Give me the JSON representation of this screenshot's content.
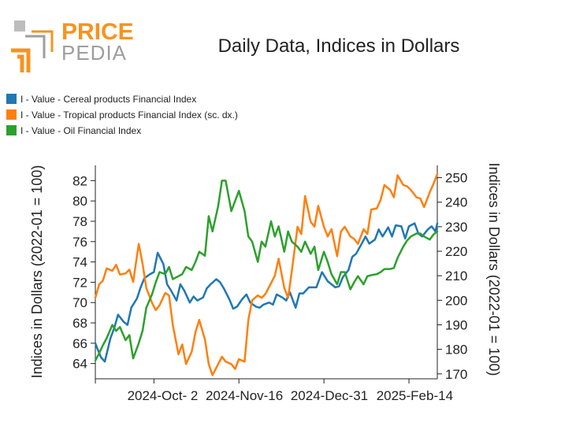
{
  "logo": {
    "word1": "PRICE",
    "word2": "PEDIA",
    "color_orange": "#f7931e",
    "color_gray": "#9e9e9e"
  },
  "chart_data": {
    "type": "line",
    "title": "Daily Data, Indices in Dollars",
    "ylabel_left": "Indices in Dollars (2022-01 = 100)",
    "ylabel_right": "Indices in Dollars (2022-01 = 100)",
    "xlabel": "",
    "x_range": [
      "2024-09-01",
      "2025-03-01"
    ],
    "x_ticks": [
      "2024-Oct- 2",
      "2024-Nov-16",
      "2024-Dec-31",
      "2025-Feb-14"
    ],
    "ylim_left": [
      62.5,
      83.5
    ],
    "ylim_right": [
      168,
      255
    ],
    "yticks_left": [
      64,
      66,
      68,
      70,
      72,
      74,
      76,
      78,
      80,
      82
    ],
    "yticks_right": [
      170,
      180,
      190,
      200,
      210,
      220,
      230,
      240,
      250
    ],
    "series": [
      {
        "name": "I - Value - Cereal products Financial Index",
        "axis": "left",
        "color": "#1f77b4",
        "x": [
          "2024-09-01",
          "2024-09-02",
          "2024-09-04",
          "2024-09-06",
          "2024-09-09",
          "2024-09-11",
          "2024-09-13",
          "2024-09-16",
          "2024-09-18",
          "2024-09-20",
          "2024-09-23",
          "2024-09-25",
          "2024-09-27",
          "2024-09-30",
          "2024-10-02",
          "2024-10-04",
          "2024-10-07",
          "2024-10-09",
          "2024-10-11",
          "2024-10-14",
          "2024-10-16",
          "2024-10-18",
          "2024-10-21",
          "2024-10-23",
          "2024-10-25",
          "2024-10-28",
          "2024-10-30",
          "2024-11-01",
          "2024-11-04",
          "2024-11-06",
          "2024-11-08",
          "2024-11-11",
          "2024-11-13",
          "2024-11-15",
          "2024-11-18",
          "2024-11-20",
          "2024-11-22",
          "2024-11-25",
          "2024-11-27",
          "2024-11-29",
          "2024-12-02",
          "2024-12-04",
          "2024-12-06",
          "2024-12-09",
          "2024-12-11",
          "2024-12-13",
          "2024-12-16",
          "2024-12-18",
          "2024-12-20",
          "2024-12-23",
          "2024-12-27",
          "2024-12-30",
          "2025-01-02",
          "2025-01-06",
          "2025-01-08",
          "2025-01-10",
          "2025-01-13",
          "2025-01-15",
          "2025-01-17",
          "2025-01-20",
          "2025-01-22",
          "2025-01-24",
          "2025-01-27",
          "2025-01-29",
          "2025-01-31",
          "2025-02-03",
          "2025-02-05",
          "2025-02-07",
          "2025-02-10",
          "2025-02-12",
          "2025-02-14",
          "2025-02-17",
          "2025-02-19",
          "2025-02-21",
          "2025-02-24",
          "2025-02-26",
          "2025-02-28",
          "2025-03-01"
        ],
        "values": [
          66.0,
          65.5,
          64.6,
          64.2,
          66.5,
          67.5,
          68.8,
          68.1,
          67.8,
          69.5,
          70.4,
          71.5,
          72.4,
          72.8,
          73.0,
          74.9,
          73.8,
          71.8,
          71.2,
          70.2,
          71.8,
          71.2,
          70.0,
          70.6,
          70.2,
          70.5,
          71.4,
          71.8,
          72.3,
          72.0,
          71.4,
          70.3,
          69.4,
          69.6,
          70.4,
          70.8,
          70.0,
          69.6,
          69.5,
          69.8,
          70.0,
          69.8,
          70.8,
          70.5,
          70.2,
          71.0,
          69.5,
          70.9,
          70.9,
          71.5,
          71.5,
          73.0,
          72.1,
          71.5,
          71.6,
          72.5,
          73.2,
          74.5,
          74.8,
          75.8,
          76.5,
          75.8,
          76.2,
          77.2,
          76.5,
          77.4,
          76.5,
          77.6,
          77.5,
          76.3,
          77.5,
          77.8,
          76.8,
          76.5,
          77.2,
          77.5,
          77.0,
          77.8
        ]
      },
      {
        "name": "I - Value - Tropical products Financial Index (sc. dx.)",
        "axis": "right",
        "color": "#ff7f0e",
        "x": [
          "2024-09-01",
          "2024-09-03",
          "2024-09-05",
          "2024-09-07",
          "2024-09-10",
          "2024-09-12",
          "2024-09-14",
          "2024-09-17",
          "2024-09-19",
          "2024-09-21",
          "2024-09-24",
          "2024-09-26",
          "2024-09-28",
          "2024-10-01",
          "2024-10-03",
          "2024-10-05",
          "2024-10-08",
          "2024-10-10",
          "2024-10-12",
          "2024-10-15",
          "2024-10-17",
          "2024-10-19",
          "2024-10-22",
          "2024-10-24",
          "2024-10-26",
          "2024-10-29",
          "2024-10-31",
          "2024-11-02",
          "2024-11-05",
          "2024-11-07",
          "2024-11-09",
          "2024-11-12",
          "2024-11-14",
          "2024-11-16",
          "2024-11-19",
          "2024-11-21",
          "2024-11-23",
          "2024-11-26",
          "2024-11-28",
          "2024-11-30",
          "2024-12-03",
          "2024-12-05",
          "2024-12-07",
          "2024-12-10",
          "2024-12-12",
          "2024-12-14",
          "2024-12-17",
          "2024-12-19",
          "2024-12-21",
          "2024-12-24",
          "2024-12-26",
          "2024-12-28",
          "2024-12-31",
          "2025-01-02",
          "2025-01-04",
          "2025-01-07",
          "2025-01-09",
          "2025-01-11",
          "2025-01-14",
          "2025-01-16",
          "2025-01-18",
          "2025-01-21",
          "2025-01-23",
          "2025-01-25",
          "2025-01-28",
          "2025-01-30",
          "2025-02-01",
          "2025-02-04",
          "2025-02-06",
          "2025-02-08",
          "2025-02-11",
          "2025-02-13",
          "2025-02-15",
          "2025-02-18",
          "2025-02-20",
          "2025-02-22",
          "2025-02-25",
          "2025-02-27",
          "2025-03-01"
        ],
        "values": [
          201.0,
          206.5,
          208.0,
          213.0,
          212.0,
          214.5,
          210.5,
          211.0,
          212.5,
          207.5,
          223.0,
          215.0,
          205.0,
          199.0,
          196.0,
          198.0,
          203.0,
          202.0,
          190.0,
          178.0,
          182.0,
          174.0,
          179.0,
          187.0,
          192.0,
          184.0,
          174.0,
          169.5,
          174.0,
          177.0,
          175.0,
          174.0,
          172.0,
          176.0,
          175.0,
          192.0,
          200.0,
          202.0,
          201.0,
          202.5,
          207.0,
          210.0,
          217.0,
          205.0,
          201.0,
          212.0,
          230.0,
          227.0,
          242.5,
          232.0,
          230.0,
          238.5,
          230.0,
          226.0,
          229.0,
          218.0,
          228.0,
          230.0,
          226.0,
          225.0,
          223.0,
          229.0,
          227.0,
          237.0,
          237.5,
          241.0,
          247.0,
          245.0,
          242.0,
          251.0,
          247.0,
          246.5,
          245.0,
          242.0,
          241.5,
          238.0,
          244.0,
          247.5,
          251.5
        ]
      },
      {
        "name": "I - Value - Oil Financial Index",
        "axis": "left",
        "color": "#2ca02c",
        "x": [
          "2024-09-01",
          "2024-09-03",
          "2024-09-05",
          "2024-09-07",
          "2024-09-10",
          "2024-09-12",
          "2024-09-14",
          "2024-09-17",
          "2024-09-19",
          "2024-09-21",
          "2024-09-24",
          "2024-09-26",
          "2024-09-28",
          "2024-10-01",
          "2024-10-03",
          "2024-10-05",
          "2024-10-08",
          "2024-10-10",
          "2024-10-12",
          "2024-10-15",
          "2024-10-17",
          "2024-10-19",
          "2024-10-22",
          "2024-10-24",
          "2024-10-26",
          "2024-10-29",
          "2024-10-31",
          "2024-11-02",
          "2024-11-05",
          "2024-11-07",
          "2024-11-09",
          "2024-11-12",
          "2024-11-14",
          "2024-11-16",
          "2024-11-19",
          "2024-11-21",
          "2024-11-23",
          "2024-11-26",
          "2024-11-28",
          "2024-11-30",
          "2024-12-03",
          "2024-12-05",
          "2024-12-07",
          "2024-12-10",
          "2024-12-12",
          "2024-12-14",
          "2024-12-17",
          "2024-12-19",
          "2024-12-21",
          "2024-12-24",
          "2024-12-26",
          "2024-12-28",
          "2024-12-31",
          "2025-01-02",
          "2025-01-04",
          "2025-01-07",
          "2025-01-09",
          "2025-01-11",
          "2025-01-14",
          "2025-01-16",
          "2025-01-18",
          "2025-01-21",
          "2025-01-23",
          "2025-01-25",
          "2025-01-28",
          "2025-01-30",
          "2025-02-01",
          "2025-02-04",
          "2025-02-06",
          "2025-02-08",
          "2025-02-11",
          "2025-02-13",
          "2025-02-15",
          "2025-02-18",
          "2025-02-20",
          "2025-02-22",
          "2025-02-25",
          "2025-02-27",
          "2025-03-01"
        ],
        "values": [
          64.3,
          65.0,
          65.8,
          66.5,
          67.8,
          67.2,
          67.6,
          66.3,
          66.8,
          64.5,
          66.0,
          67.2,
          69.5,
          70.8,
          72.0,
          73.0,
          72.8,
          73.5,
          72.3,
          72.6,
          72.8,
          73.5,
          73.2,
          74.0,
          75.0,
          74.6,
          78.5,
          77.0,
          79.5,
          82.0,
          82.0,
          79.0,
          80.0,
          81.0,
          79.0,
          76.5,
          76.0,
          74.0,
          76.0,
          75.5,
          78.0,
          76.5,
          77.5,
          75.0,
          77.0,
          76.0,
          75.5,
          75.0,
          76.0,
          74.8,
          75.5,
          73.2,
          75.0,
          74.0,
          72.8,
          71.8,
          73.0,
          73.0,
          71.3,
          72.0,
          72.6,
          71.8,
          72.6,
          72.7,
          72.8,
          73.0,
          73.3,
          73.3,
          73.4,
          74.4,
          75.5,
          76.1,
          76.5,
          76.8,
          76.8,
          76.5,
          76.2,
          76.7,
          77.0
        ]
      }
    ]
  }
}
